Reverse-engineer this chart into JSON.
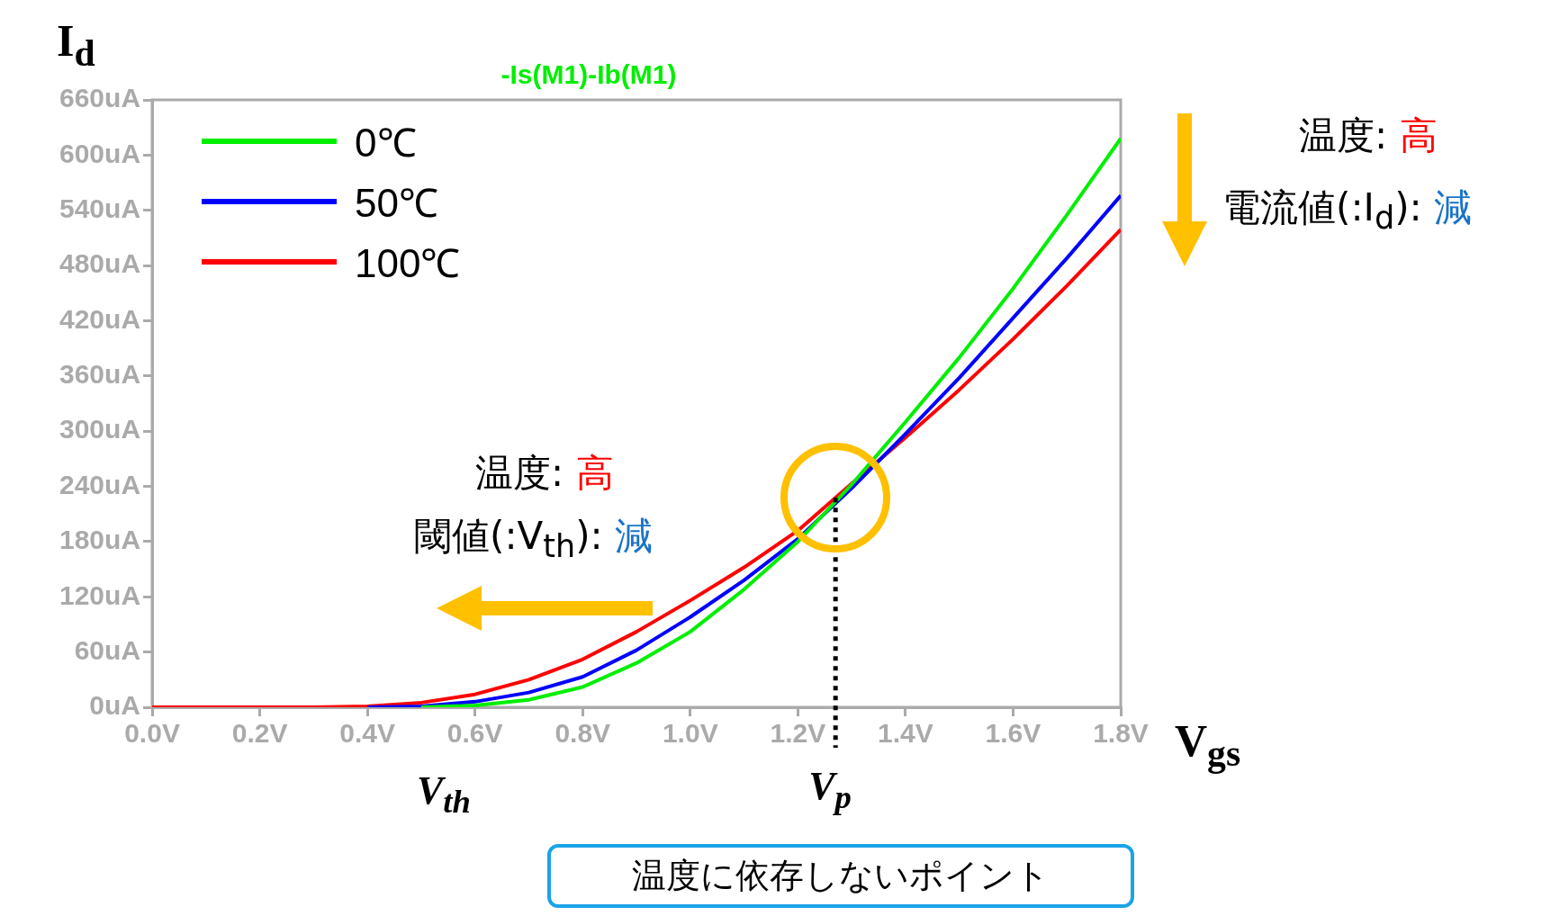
{
  "chart_data": {
    "type": "line",
    "title": "-Is(M1)-Ib(M1)",
    "xlabel": "V$_{gs}$",
    "ylabel": "I$_{d}$",
    "x": [
      0,
      0.1,
      0.2,
      0.3,
      0.4,
      0.5,
      0.6,
      0.7,
      0.8,
      0.9,
      1.0,
      1.1,
      1.2,
      1.3,
      1.4,
      1.5,
      1.6,
      1.7,
      1.8
    ],
    "series": [
      {
        "name": "0℃",
        "color": "#00ee00",
        "values": [
          null,
          null,
          null,
          null,
          null,
          0,
          2,
          8,
          22,
          48,
          82,
          128,
          180,
          242,
          310,
          380,
          455,
          535,
          618
        ]
      },
      {
        "name": "50℃",
        "color": "#0000ff",
        "values": [
          null,
          null,
          null,
          null,
          0,
          1,
          6,
          16,
          33,
          62,
          98,
          138,
          183,
          238,
          297,
          358,
          423,
          488,
          556
        ]
      },
      {
        "name": "100℃",
        "color": "#ff0000",
        "values": [
          0,
          0,
          0,
          0,
          1,
          5,
          14,
          30,
          52,
          82,
          116,
          152,
          192,
          243,
          293,
          345,
          400,
          458,
          519
        ]
      }
    ],
    "xlim": [
      0,
      1.8
    ],
    "xticks": [
      {
        "value": 0,
        "label": "0.0V"
      },
      {
        "value": 0.2,
        "label": "0.2V"
      },
      {
        "value": 0.4,
        "label": "0.4V"
      },
      {
        "value": 0.6,
        "label": "0.6V"
      },
      {
        "value": 0.8,
        "label": "0.8V"
      },
      {
        "value": 1.0,
        "label": "1.0V"
      },
      {
        "value": 1.2,
        "label": "1.2V"
      },
      {
        "value": 1.4,
        "label": "1.4V"
      },
      {
        "value": 1.6,
        "label": "1.6V"
      },
      {
        "value": 1.8,
        "label": "1.8V"
      }
    ],
    "ylim": [
      0,
      660
    ],
    "yticks": [
      {
        "value": 0,
        "label": "0uA"
      },
      {
        "value": 60,
        "label": "60uA"
      },
      {
        "value": 120,
        "label": "120uA"
      },
      {
        "value": 180,
        "label": "180uA"
      },
      {
        "value": 240,
        "label": "240uA"
      },
      {
        "value": 300,
        "label": "300uA"
      },
      {
        "value": 360,
        "label": "360uA"
      },
      {
        "value": 420,
        "label": "420uA"
      },
      {
        "value": 480,
        "label": "480uA"
      },
      {
        "value": 540,
        "label": "540uA"
      },
      {
        "value": 600,
        "label": "600uA"
      },
      {
        "value": 660,
        "label": "660uA"
      }
    ],
    "ref_lines": [
      {
        "axis": "x",
        "value": 1.27,
        "label": "V$_{p}$",
        "line_style": "dotted",
        "color": "#000000"
      }
    ],
    "annotations": [
      "温度: 高",
      "電流値(:I$_{d}$): 減",
      "温度: 高",
      "閾値(:V$_{th}$): 減",
      "V$_{th}$",
      "温度に依存しないポイント"
    ],
    "legend": "top left",
    "grid": false,
    "marker": "none",
    "line_style": "solid"
  }
}
